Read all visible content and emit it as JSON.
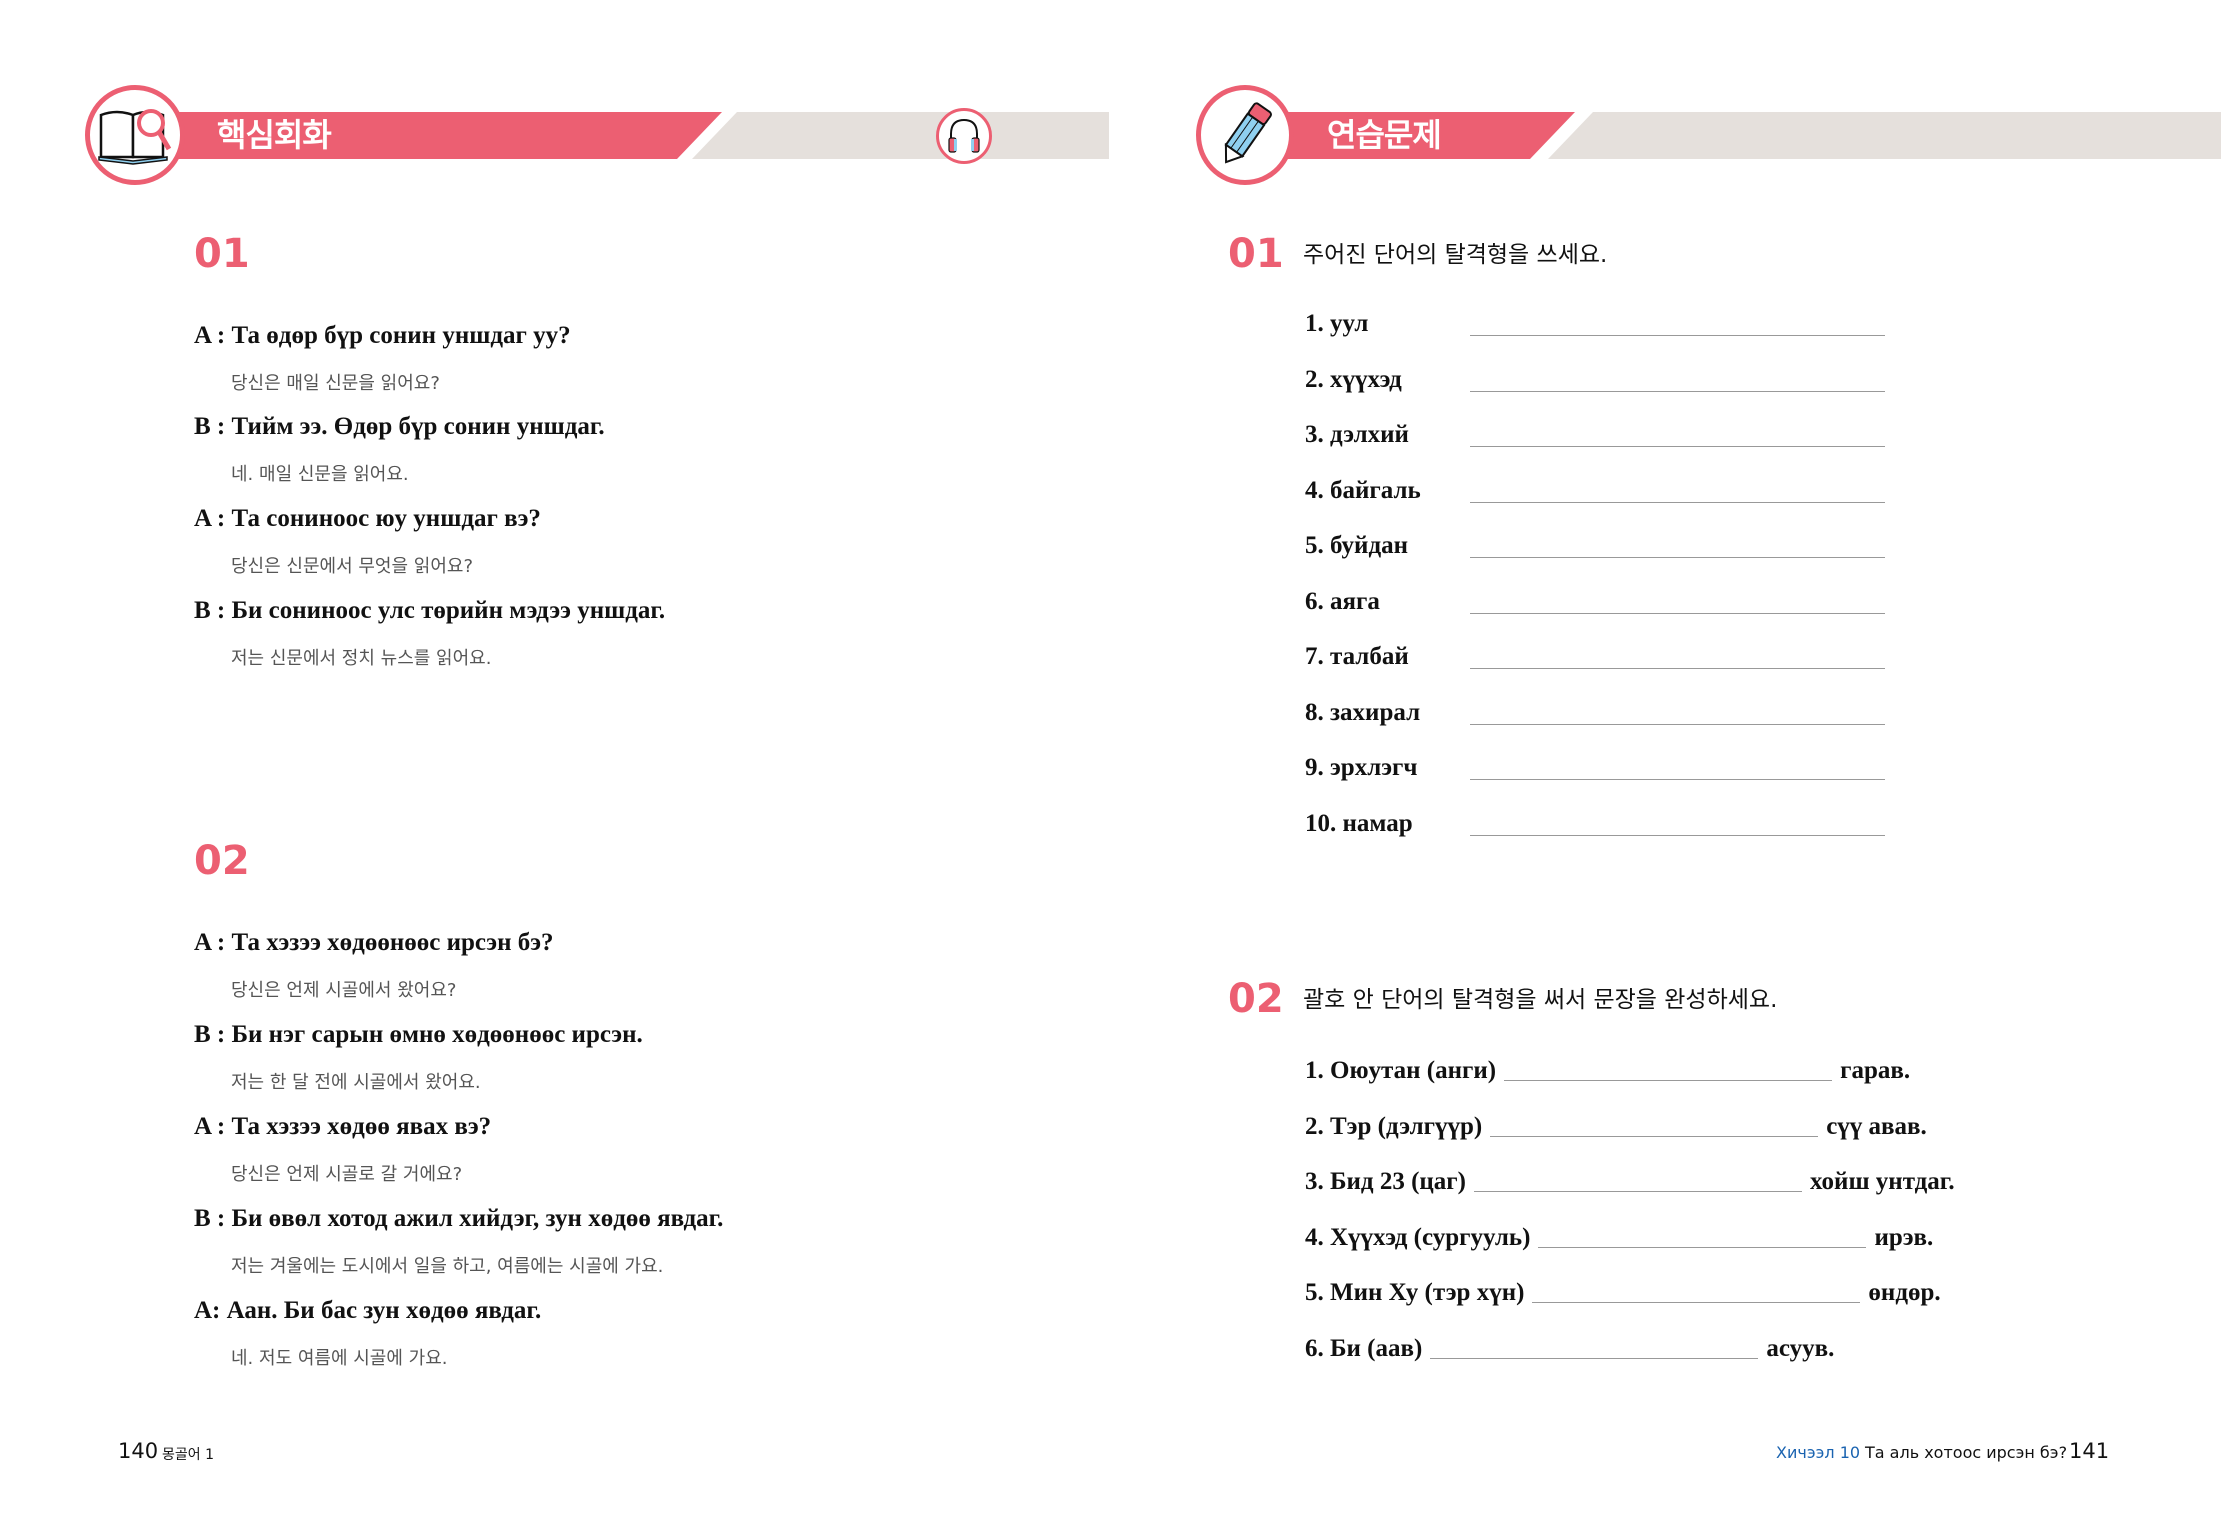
{
  "colors": {
    "accent": "#ec5f72",
    "band_gray": "#e5e0dc",
    "footer_lesson": "#1a63b0"
  },
  "left": {
    "section_title": "핵심회화",
    "section_icon": "book-magnifier-icon",
    "audio_icon": "headphones-icon",
    "dialogues": [
      {
        "number": "01",
        "lines": [
          {
            "mn": "A : Та өдөр бүр сонин уншдаг уу?",
            "ko": "당신은 매일 신문을 읽어요?"
          },
          {
            "mn": "B : Тийм ээ. Өдөр бүр сонин уншдаг.",
            "ko": "네. 매일 신문을 읽어요."
          },
          {
            "mn": "A : Та сониноос юу уншдаг вэ?",
            "ko": "당신은 신문에서 무엇을 읽어요?"
          },
          {
            "mn": "B : Би сониноос улс төрийн мэдээ уншдаг.",
            "ko": "저는 신문에서 정치 뉴스를 읽어요."
          }
        ]
      },
      {
        "number": "02",
        "lines": [
          {
            "mn": "A : Та хэзээ хөдөөнөөс ирсэн бэ?",
            "ko": "당신은 언제 시골에서 왔어요?"
          },
          {
            "mn": "B : Би нэг сарын өмнө хөдөөнөөс ирсэн.",
            "ko": "저는 한 달 전에 시골에서 왔어요."
          },
          {
            "mn": "A : Та хэзээ хөдөө явах вэ?",
            "ko": "당신은 언제 시골로 갈 거에요?"
          },
          {
            "mn": "B : Би өвөл хотод ажил хийдэг, зун хөдөө явдаг.",
            "ko": "저는 겨울에는 도시에서 일을 하고, 여름에는 시골에 가요."
          },
          {
            "mn": "A: Аан. Би бас зун хөдөө явдаг.",
            "ko": "네. 저도 여름에 시골에 가요."
          }
        ]
      }
    ],
    "footer": {
      "page": "140",
      "book": "몽골어 1"
    }
  },
  "right": {
    "section_title": "연습문제",
    "section_icon": "pencil-icon",
    "exercise1": {
      "number": "01",
      "instruction": "주어진 단어의 탈격형을 쓰세요.",
      "items": [
        "1. уул",
        "2. хүүхэд",
        "3. дэлхий",
        "4. байгаль",
        "5. буйдан",
        "6. аяга",
        "7. талбай",
        "8. захирал",
        "9. эрхлэгч",
        "10. намар"
      ]
    },
    "exercise2": {
      "number": "02",
      "instruction": "괄호 안 단어의 탈격형을 써서 문장을 완성하세요.",
      "items": [
        {
          "before": "1. Оюутан (анги)",
          "after": "гарав."
        },
        {
          "before": "2. Тэр (дэлгүүр)",
          "after": "сүү авав."
        },
        {
          "before": "3. Бид 23 (цаг)",
          "after": "хойш унтдаг."
        },
        {
          "before": "4. Хүүхэд (сургууль)",
          "after": "ирэв."
        },
        {
          "before": "5. Мин Ху (тэр хүн)",
          "after": "өндөр."
        },
        {
          "before": "6. Би (аав)",
          "after": "асуув."
        }
      ]
    },
    "footer": {
      "lesson": "Хичээл 10",
      "lesson_title": "Та аль хотоос ирсэн бэ?",
      "page": "141"
    }
  }
}
